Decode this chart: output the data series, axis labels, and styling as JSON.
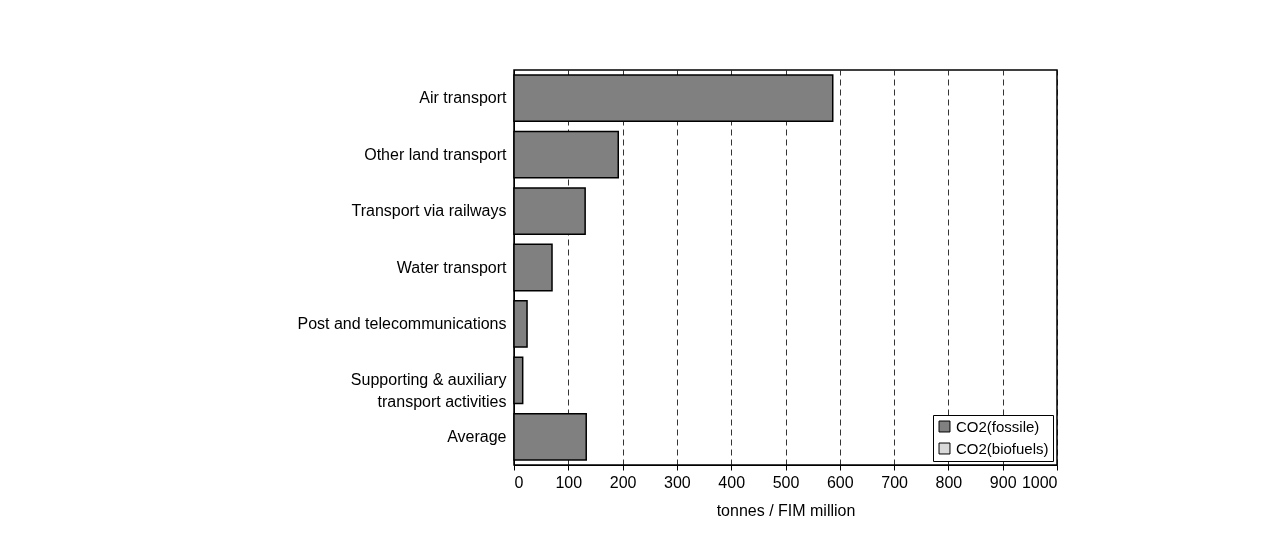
{
  "chart_data": {
    "type": "bar",
    "orientation": "horizontal",
    "xlabel": "tonnes / FIM million",
    "categories": [
      "Air transport",
      "Other land transport",
      "Transport via railways",
      "Water transport",
      "Post and telecommunications",
      "Supporting & auxiliary\ntransport activities",
      "Average"
    ],
    "series": [
      {
        "name": "CO2(fossile)",
        "color": "#808080",
        "values": [
          587,
          192,
          131,
          70,
          24,
          16,
          133
        ]
      },
      {
        "name": "CO2(biofuels)",
        "color": "#d9d9d9",
        "values": [
          null,
          null,
          null,
          null,
          null,
          null,
          null
        ]
      }
    ],
    "xlim": [
      0,
      1000
    ],
    "xticks": [
      0,
      100,
      200,
      300,
      400,
      500,
      600,
      700,
      800,
      900,
      1000
    ],
    "grid": "x",
    "legend": "bottom right"
  }
}
